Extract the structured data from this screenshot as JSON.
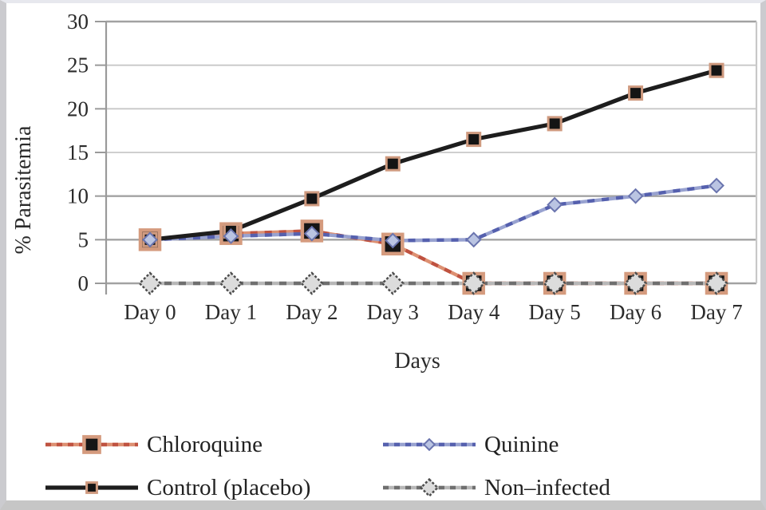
{
  "chart_data": {
    "type": "line",
    "title": "",
    "xlabel": "Days",
    "ylabel": "% Parasitemia",
    "ylim": [
      0,
      30
    ],
    "yticks": [
      0,
      5,
      10,
      15,
      20,
      25,
      30
    ],
    "categories": [
      "Day 0",
      "Day 1",
      "Day 2",
      "Day 3",
      "Day 4",
      "Day 5",
      "Day 6",
      "Day 7"
    ],
    "grid": "horizontal",
    "legend_position": "below",
    "series": [
      {
        "name": "Chloroquine",
        "values": [
          5,
          5.7,
          6,
          4.5,
          0,
          0,
          0,
          0
        ],
        "line_style": "checkered",
        "line_color": "#bf5240",
        "line_color_light": "#dd9072",
        "marker": "square",
        "marker_size": 24,
        "marker_fill": "#161616",
        "marker_stroke": "#d59b7e",
        "marker_stroke_width": 4.5
      },
      {
        "name": "Quinine",
        "values": [
          5,
          5.4,
          5.7,
          4.9,
          5,
          9,
          10,
          11.2
        ],
        "line_style": "checkered",
        "line_color": "#5560ae",
        "line_color_light": "#98a2d0",
        "marker": "diamond",
        "marker_size": 17,
        "marker_fill": "#bac4e2",
        "marker_stroke": "#6a74ae",
        "marker_stroke_width": 2
      },
      {
        "name": "Control (placebo)",
        "values": [
          5,
          6,
          9.7,
          13.7,
          16.5,
          18.3,
          21.8,
          24.4
        ],
        "line_style": "solid",
        "line_color": "#1d1d1d",
        "line_color_light": "#1d1d1d",
        "marker": "square",
        "marker_size": 16,
        "marker_fill": "#141414",
        "marker_stroke": "#cf9a7f",
        "marker_stroke_width": 3
      },
      {
        "name": "Non-infected",
        "values": [
          0,
          0,
          0,
          0,
          0,
          0,
          0,
          0
        ],
        "line_style": "checkered",
        "line_color": "#6f6f6f",
        "line_color_light": "#b7b7b7",
        "marker": "diamond",
        "marker_size": 26,
        "marker_fill": "#dcdcdc",
        "marker_stroke": "#4d4d4d",
        "marker_stroke_width": 2.5,
        "marker_dash": "3 2.2"
      }
    ]
  },
  "legend": {
    "items": [
      {
        "label": "Chloroquine",
        "series": 0
      },
      {
        "label": "Quinine",
        "series": 1
      },
      {
        "label": "Control (placebo)",
        "series": 2
      },
      {
        "label": "Non–infected",
        "series": 3
      }
    ]
  },
  "axis": {
    "line_color": "#9a9a9a",
    "grid_color_major": "#a2a2a2",
    "grid_color_minor": "#c8c8c8",
    "text_color": "#2b2b2b"
  }
}
